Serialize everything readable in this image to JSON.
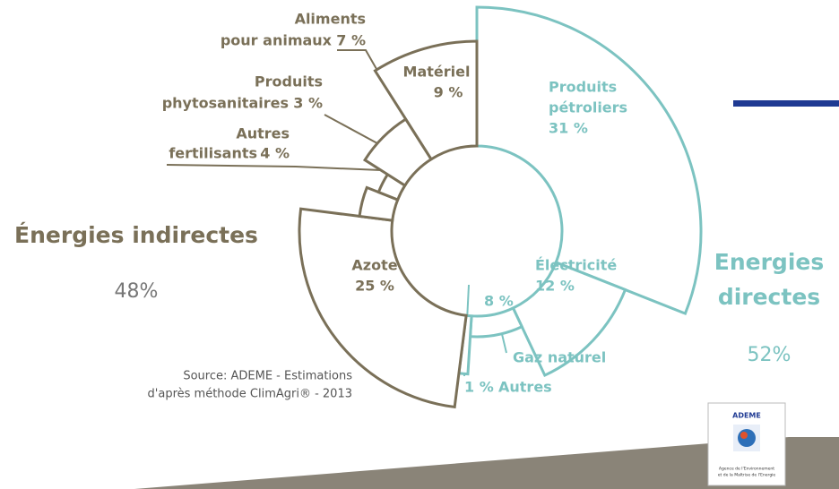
{
  "chart_data": {
    "type": "pie",
    "categories": [
      [
        "Produits",
        "pétroliers"
      ],
      [
        "Électricité"
      ],
      [
        "Gaz naturel"
      ],
      [
        "Autres"
      ],
      [
        "Azote"
      ],
      [
        "Autres",
        "fertilisants"
      ],
      [
        "Produits",
        "phytosanitaires"
      ],
      [
        "Aliments",
        "pour animaux"
      ],
      [
        "Matériel"
      ]
    ],
    "values": [
      31,
      12,
      8,
      1,
      25,
      4,
      3,
      7,
      9
    ],
    "value_labels": [
      "31 %",
      "12 %",
      "8 %",
      "1 %",
      "25 %",
      "4 %",
      "3 %",
      "7 %",
      "9 %"
    ],
    "colors": [
      "#7cc3c1",
      "#7cc3c1",
      "#7cc3c1",
      "#7cc3c1",
      "#7a7058",
      "#7a7058",
      "#7a7058",
      "#7a7058",
      "#7a7058"
    ],
    "groups": [
      {
        "name": [
          "Énergies indirectes"
        ],
        "label": "48%",
        "color": "#7a7058"
      },
      {
        "name": [
          "Energies",
          "directes"
        ],
        "label": "52%",
        "color": "#7cc3c1"
      }
    ],
    "source": [
      "Source: ADEME - Estimations",
      "d'après méthode ClimAgri® - 2013"
    ]
  },
  "logo": {
    "title": "ADEME",
    "lines": [
      "Agence de l'Environnement",
      "et de la Maîtrise de l'Energie"
    ]
  }
}
